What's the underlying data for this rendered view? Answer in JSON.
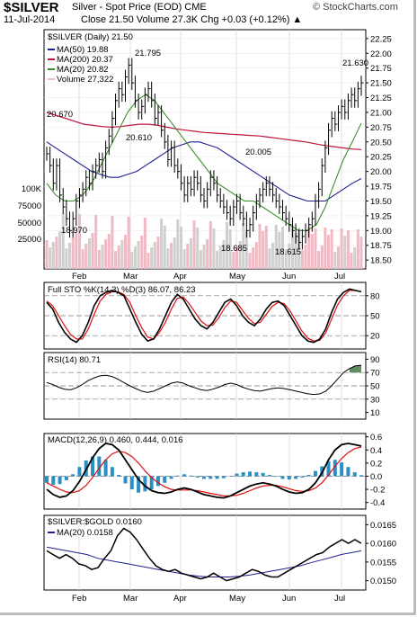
{
  "header": {
    "symbol": "$SILVER",
    "name": "Silver - Spot Price (EOD) CME",
    "brand": "© StockCharts.com",
    "date": "11-Jul-2014",
    "stats": "Close 21.50   Volume 27.3K   Chg +0.03 (+0.12%) ▲"
  },
  "colors": {
    "price": "#000000",
    "ma50": "#1f1f8f",
    "ma200": "#c0143c",
    "ma20": "#3b8f2a",
    "volume": "#f0b9c4",
    "volume_down": "#cfcfcf",
    "stoch_k": "#000000",
    "stoch_d": "#e01010",
    "rsi": "#000000",
    "rsi_fill": "#5e8f5e",
    "macd": "#000000",
    "macd_signal": "#e01010",
    "macd_hist": "#2b8fc4",
    "ratio": "#000000",
    "ratio_ma": "#1f1f8f"
  },
  "chart_data": [
    {
      "type": "line",
      "panel": "price",
      "title": "$SILVER (Daily) 21.50",
      "legend": [
        {
          "name": "MA(50) 19.88",
          "color": "#1f1f8f"
        },
        {
          "name": "MA(200) 20.37",
          "color": "#c0143c"
        },
        {
          "name": "MA(20) 20.82",
          "color": "#3b8f2a"
        },
        {
          "name": "Volume 27,322",
          "color": "#f0b9c4"
        }
      ],
      "x_tick_labels": [
        "Feb",
        "Mar",
        "Apr",
        "May",
        "Jun",
        "Jul"
      ],
      "y_tick_labels": [
        "22.25",
        "22.00",
        "21.75",
        "21.50",
        "21.25",
        "21.00",
        "20.75",
        "20.50",
        "20.25",
        "20.00",
        "19.75",
        "19.50",
        "19.25",
        "19.00",
        "18.75",
        "18.50"
      ],
      "volume_tick_labels": [
        "100K",
        "75000",
        "50000",
        "25000"
      ],
      "ylim": [
        18.35,
        22.4
      ],
      "annotations": [
        "20.670",
        "21.795",
        "20.610",
        "20.005",
        "18.970",
        "18.685",
        "18.615",
        "21.630"
      ],
      "series": [
        {
          "name": "Price",
          "values": [
            20.3,
            20.1,
            19.8,
            20.1,
            19.6,
            19.4,
            19.2,
            19.0,
            19.2,
            19.5,
            19.6,
            19.7,
            19.9,
            19.8,
            20.0,
            20.1,
            20.2,
            20.0,
            20.4,
            20.6,
            20.9,
            21.2,
            21.4,
            21.3,
            21.6,
            21.8,
            21.5,
            21.2,
            21.0,
            21.1,
            21.3,
            21.4,
            21.2,
            20.9,
            21.0,
            20.7,
            20.5,
            20.2,
            20.4,
            20.1,
            20.0,
            19.8,
            19.6,
            19.8,
            19.7,
            19.9,
            19.8,
            19.6,
            19.5,
            19.7,
            19.9,
            19.8,
            19.6,
            19.5,
            19.4,
            19.3,
            19.2,
            19.4,
            19.5,
            19.3,
            19.2,
            19.0,
            19.1,
            19.3,
            19.5,
            19.6,
            19.7,
            19.8,
            19.7,
            19.6,
            19.5,
            19.4,
            19.3,
            19.2,
            19.1,
            19.0,
            18.9,
            18.8,
            18.9,
            19.0,
            19.1,
            19.2,
            19.5,
            19.7,
            20.1,
            20.4,
            20.7,
            20.9,
            20.8,
            21.0,
            21.1,
            21.0,
            21.2,
            21.3,
            21.2,
            21.4,
            21.5
          ]
        },
        {
          "name": "MA(50)",
          "values": [
            20.5,
            20.4,
            20.3,
            20.2,
            20.1,
            20.0,
            19.95,
            19.9,
            19.9,
            19.95,
            20.0,
            20.1,
            20.2,
            20.3,
            20.4,
            20.45,
            20.5,
            20.5,
            20.45,
            20.4,
            20.3,
            20.2,
            20.1,
            20.0,
            19.9,
            19.8,
            19.7,
            19.6,
            19.55,
            19.5,
            19.5,
            19.5,
            19.6,
            19.7,
            19.8,
            19.88
          ]
        },
        {
          "name": "MA(200)",
          "values": [
            21.0,
            20.95,
            20.9,
            20.85,
            20.8,
            20.78,
            20.76,
            20.75,
            20.76,
            20.78,
            20.8,
            20.8,
            20.78,
            20.75,
            20.72,
            20.7,
            20.68,
            20.66,
            20.65,
            20.64,
            20.63,
            20.62,
            20.61,
            20.6,
            20.58,
            20.56,
            20.54,
            20.52,
            20.5,
            20.47,
            20.44,
            20.42,
            20.4,
            20.38,
            20.37
          ]
        },
        {
          "name": "MA(20)",
          "values": [
            19.8,
            19.6,
            19.5,
            19.5,
            19.6,
            19.8,
            20.1,
            20.4,
            20.7,
            21.0,
            21.2,
            21.3,
            21.2,
            21.0,
            20.8,
            20.6,
            20.4,
            20.2,
            20.0,
            19.8,
            19.7,
            19.6,
            19.5,
            19.5,
            19.4,
            19.3,
            19.2,
            19.1,
            19.0,
            19.0,
            19.1,
            19.4,
            19.8,
            20.2,
            20.5,
            20.82
          ]
        }
      ]
    },
    {
      "type": "line",
      "panel": "stochastic",
      "title": "Full STO %K(14,3) %D(3) 86.07, 86.23",
      "y_tick_labels": [
        "80",
        "50",
        "20"
      ],
      "ylim": [
        0,
        100
      ],
      "series": [
        {
          "name": "%K(14,3)",
          "values": [
            70,
            60,
            40,
            25,
            15,
            10,
            20,
            40,
            65,
            80,
            85,
            88,
            85,
            80,
            60,
            40,
            22,
            12,
            15,
            30,
            50,
            70,
            82,
            75,
            60,
            45,
            35,
            30,
            40,
            55,
            70,
            75,
            65,
            50,
            40,
            35,
            45,
            60,
            70,
            72,
            65,
            50,
            35,
            20,
            12,
            10,
            15,
            30,
            55,
            75,
            85,
            90,
            88,
            86
          ]
        },
        {
          "name": "%D(3)",
          "values": [
            72,
            65,
            50,
            35,
            22,
            15,
            15,
            30,
            52,
            72,
            82,
            86,
            86,
            82,
            70,
            50,
            32,
            18,
            15,
            25,
            40,
            60,
            76,
            78,
            68,
            55,
            42,
            35,
            36,
            47,
            62,
            72,
            70,
            58,
            46,
            38,
            40,
            52,
            64,
            70,
            68,
            57,
            42,
            27,
            16,
            12,
            13,
            24,
            45,
            66,
            80,
            88,
            88,
            86
          ]
        }
      ]
    },
    {
      "type": "area",
      "panel": "rsi",
      "title": "RSI(14) 80.71",
      "y_tick_labels": [
        "90",
        "70",
        "50",
        "30",
        "10"
      ],
      "ylim": [
        0,
        100
      ],
      "series": [
        {
          "name": "RSI(14)",
          "values": [
            55,
            52,
            48,
            45,
            44,
            47,
            52,
            58,
            62,
            65,
            66,
            64,
            60,
            55,
            50,
            46,
            42,
            40,
            42,
            46,
            50,
            54,
            56,
            54,
            50,
            47,
            44,
            43,
            45,
            48,
            52,
            54,
            52,
            48,
            45,
            43,
            42,
            44,
            46,
            47,
            46,
            44,
            42,
            40,
            38,
            37,
            38,
            42,
            50,
            60,
            70,
            76,
            80,
            81
          ]
        }
      ]
    },
    {
      "type": "line",
      "panel": "macd",
      "title": "MACD(12,26,9) 0.460, 0.444, 0.016",
      "y_tick_labels": [
        "0.6",
        "0.4",
        "0.2",
        "0.0",
        "-0.2",
        "-0.4"
      ],
      "ylim": [
        -0.5,
        0.65
      ],
      "series": [
        {
          "name": "MACD(12,26,9)",
          "values": [
            -0.2,
            -0.28,
            -0.32,
            -0.3,
            -0.22,
            -0.08,
            0.1,
            0.28,
            0.42,
            0.5,
            0.48,
            0.4,
            0.25,
            0.1,
            -0.05,
            -0.15,
            -0.22,
            -0.25,
            -0.26,
            -0.24,
            -0.2,
            -0.18,
            -0.2,
            -0.24,
            -0.28,
            -0.3,
            -0.32,
            -0.33,
            -0.3,
            -0.25,
            -0.2,
            -0.15,
            -0.12,
            -0.1,
            -0.12,
            -0.15,
            -0.2,
            -0.24,
            -0.26,
            -0.25,
            -0.2,
            -0.1,
            0.05,
            0.25,
            0.4,
            0.48,
            0.5,
            0.48,
            0.46
          ]
        },
        {
          "name": "Signal",
          "values": [
            -0.1,
            -0.15,
            -0.2,
            -0.24,
            -0.25,
            -0.22,
            -0.14,
            -0.02,
            0.12,
            0.25,
            0.34,
            0.38,
            0.36,
            0.3,
            0.2,
            0.08,
            -0.02,
            -0.1,
            -0.16,
            -0.2,
            -0.21,
            -0.21,
            -0.21,
            -0.22,
            -0.24,
            -0.26,
            -0.28,
            -0.3,
            -0.3,
            -0.29,
            -0.26,
            -0.22,
            -0.18,
            -0.15,
            -0.14,
            -0.14,
            -0.16,
            -0.19,
            -0.22,
            -0.23,
            -0.22,
            -0.18,
            -0.1,
            0.02,
            0.15,
            0.27,
            0.36,
            0.42,
            0.444
          ]
        }
      ]
    },
    {
      "type": "line",
      "panel": "ratio",
      "title": "$SILVER:$GOLD 0.0160",
      "y_tick_labels": [
        "0.0165",
        "0.0160",
        "0.0155",
        "0.0150"
      ],
      "ylim": [
        0.01475,
        0.01675
      ],
      "series": [
        {
          "name": "$SILVER:$GOLD",
          "values": [
            0.0158,
            0.0157,
            0.0156,
            0.0157,
            0.0156,
            0.01545,
            0.0154,
            0.0153,
            0.01535,
            0.0156,
            0.0158,
            0.0162,
            0.0164,
            0.0163,
            0.0161,
            0.01585,
            0.0156,
            0.0154,
            0.0153,
            0.01525,
            0.0153,
            0.0152,
            0.01515,
            0.0151,
            0.01505,
            0.0151,
            0.0152,
            0.0151,
            0.015,
            0.01505,
            0.0151,
            0.0152,
            0.0153,
            0.01525,
            0.01515,
            0.0151,
            0.0151,
            0.0152,
            0.0153,
            0.0154,
            0.0155,
            0.0156,
            0.0157,
            0.01575,
            0.0159,
            0.016,
            0.0161,
            0.016,
            0.0161,
            0.016
          ]
        },
        {
          "name": "MA(20) 0.0158",
          "values": [
            0.0159,
            0.01585,
            0.0158,
            0.01575,
            0.0157,
            0.0156,
            0.01555,
            0.0155,
            0.01545,
            0.0154,
            0.01535,
            0.0153,
            0.01525,
            0.0152,
            0.01515,
            0.01512,
            0.0151,
            0.0151,
            0.0151,
            0.01512,
            0.01515,
            0.0152,
            0.01525,
            0.0153,
            0.01535,
            0.0154,
            0.01548,
            0.01555,
            0.01562,
            0.0157,
            0.01575,
            0.0158
          ]
        }
      ]
    }
  ]
}
